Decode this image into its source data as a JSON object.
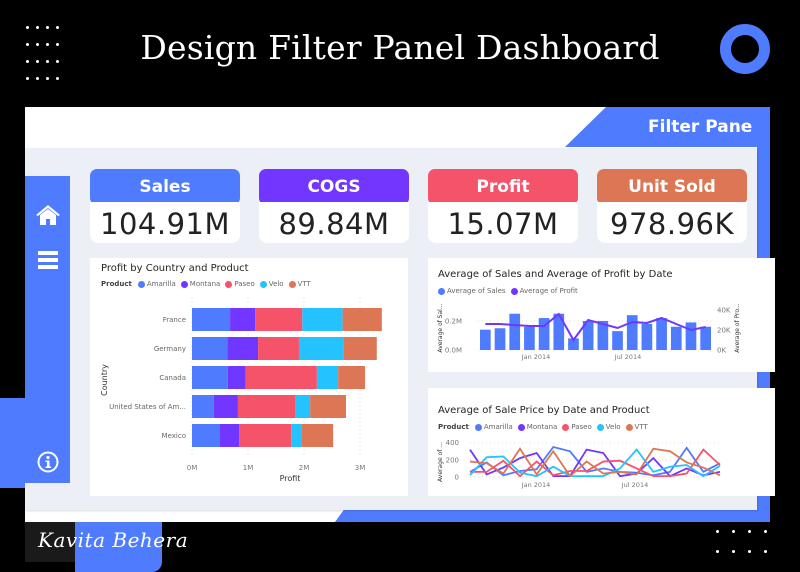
{
  "page": {
    "title": "Design Filter Panel Dashboard",
    "filter_pane_label": "Filter Pane",
    "signature": "Kavita Behera",
    "colors": {
      "accent": "#4f7cff",
      "background": "#000000",
      "panel": "#eceff6"
    }
  },
  "sidebar": {
    "items": [
      {
        "icon": "home-icon"
      },
      {
        "icon": "menu-icon"
      },
      {
        "icon": "info-icon"
      }
    ]
  },
  "kpis": [
    {
      "label": "Sales",
      "value": "104.91M",
      "color": "#4f7cff"
    },
    {
      "label": "COGS",
      "value": "89.84M",
      "color": "#7136ff"
    },
    {
      "label": "Profit",
      "value": "15.07M",
      "color": "#f5536a"
    },
    {
      "label": "Unit Sold",
      "value": "978.96K",
      "color": "#dd7654"
    }
  ],
  "chart_data": [
    {
      "type": "bar",
      "orientation": "horizontal",
      "stacked": true,
      "title": "Profit by Country and Product",
      "legend_title": "Product",
      "legend_position": "top-left",
      "xlabel": "Profit",
      "ylabel": "Country",
      "xlim": [
        0,
        3.4
      ],
      "x_ticks": [
        "0M",
        "1M",
        "2M",
        "3M"
      ],
      "grid": true,
      "categories": [
        "France",
        "Germany",
        "Canada",
        "United States of Am...",
        "Mexico"
      ],
      "series": [
        {
          "name": "Amarilla",
          "color": "#4f7cff",
          "values": [
            0.68,
            0.63,
            0.64,
            0.39,
            0.5
          ]
        },
        {
          "name": "Montana",
          "color": "#7136ff",
          "values": [
            0.45,
            0.55,
            0.32,
            0.43,
            0.34
          ]
        },
        {
          "name": "Paseo",
          "color": "#f5536a",
          "values": [
            0.84,
            0.73,
            1.27,
            1.02,
            0.93
          ]
        },
        {
          "name": "Velo",
          "color": "#24c2ff",
          "values": [
            0.72,
            0.79,
            0.38,
            0.27,
            0.18
          ]
        },
        {
          "name": "VTT",
          "color": "#dd7654",
          "values": [
            0.7,
            0.6,
            0.48,
            0.64,
            0.57
          ]
        }
      ]
    },
    {
      "type": "bar+line",
      "title": "Average of Sales and Average of Profit by Date",
      "legend_position": "top-left",
      "ylabel": "Average of Sal...",
      "y2label": "Average of Pro...",
      "ylim": [
        0,
        0.31
      ],
      "y_ticks": [
        "0.0M",
        "0.2M"
      ],
      "y2lim": [
        0,
        45
      ],
      "y2_ticks": [
        "0K",
        "20K",
        "40K"
      ],
      "x_ticks": [
        "Jan 2014",
        "Jul 2014"
      ],
      "grid": true,
      "series": [
        {
          "name": "Average of  Sales",
          "type": "bar",
          "color": "#4f7cff",
          "unit": "M",
          "values": [
            0.14,
            0.15,
            0.25,
            0.16,
            0.22,
            0.25,
            0.08,
            0.2,
            0.2,
            0.13,
            0.24,
            0.18,
            0.22,
            0.16,
            0.19,
            0.16
          ]
        },
        {
          "name": "Average of Profit",
          "type": "line",
          "color": "#7136ff",
          "unit": "K",
          "values": [
            26,
            26,
            25,
            24,
            24,
            36,
            10,
            30,
            26,
            22,
            28,
            27,
            32,
            26,
            20,
            23
          ]
        }
      ]
    },
    {
      "type": "line",
      "title": "Average of Sale Price by Date and Product",
      "legend_title": "Product",
      "legend_position": "top-left",
      "ylabel": "Average of ...",
      "ylim": [
        0,
        420
      ],
      "y_ticks": [
        "0",
        "200",
        "400"
      ],
      "x_ticks": [
        "Jan 2014",
        "Jul 2014"
      ],
      "grid": true,
      "series": [
        {
          "name": "Amarilla",
          "color": "#4f7cff",
          "values": [
            60,
            170,
            20,
            70,
            90,
            350,
            300,
            60,
            100,
            60,
            50,
            20,
            60,
            340,
            60,
            160
          ]
        },
        {
          "name": "Montana",
          "color": "#7136ff",
          "values": [
            320,
            30,
            110,
            220,
            280,
            10,
            10,
            320,
            280,
            10,
            40,
            220,
            10,
            100,
            20,
            60
          ]
        },
        {
          "name": "Paseo",
          "color": "#f5536a",
          "values": [
            60,
            60,
            190,
            10,
            180,
            20,
            70,
            70,
            180,
            190,
            100,
            10,
            10,
            40,
            320,
            140
          ]
        },
        {
          "name": "Velo",
          "color": "#24c2ff",
          "values": [
            20,
            230,
            240,
            50,
            10,
            120,
            10,
            10,
            10,
            100,
            320,
            60,
            120,
            140,
            10,
            130
          ]
        },
        {
          "name": "VTT",
          "color": "#dd7654",
          "values": [
            180,
            160,
            40,
            330,
            30,
            300,
            10,
            180,
            40,
            60,
            30,
            330,
            300,
            170,
            110,
            20
          ]
        }
      ]
    }
  ]
}
